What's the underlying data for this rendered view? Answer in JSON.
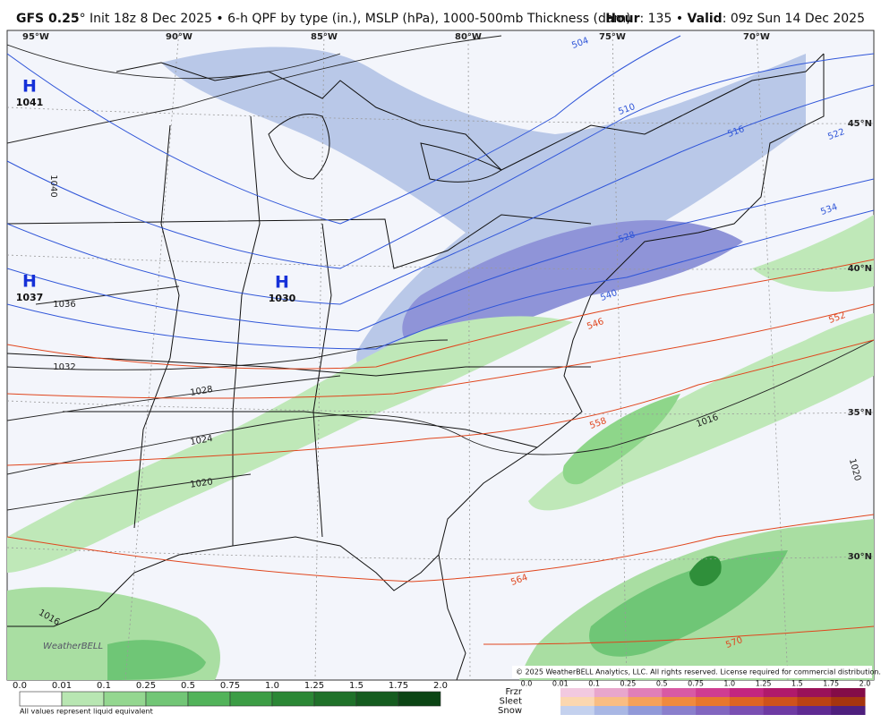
{
  "header": {
    "model": "GFS 0.25",
    "run_info": "° Init 18z 8 Dec 2025 • 6-h QPF by type (in.), MSLP (hPa), 1000-500mb Thickness (dam)",
    "hour_label": "Hour",
    "hour": ": 135 •",
    "valid_label": "Valid",
    "valid": ": 09z Sun 14 Dec 2025"
  },
  "map": {
    "longitudes": [
      "95°W",
      "90°W",
      "85°W",
      "80°W",
      "75°W",
      "70°W"
    ],
    "latitudes": [
      "45°N",
      "40°N",
      "35°N",
      "30°N"
    ],
    "highs": [
      {
        "letter": "H",
        "pressure": "1041"
      },
      {
        "letter": "H",
        "pressure": "1037"
      },
      {
        "letter": "H",
        "pressure": "1030"
      }
    ],
    "isobar_labels": [
      "1040",
      "1036",
      "1032",
      "1028",
      "1024",
      "1020",
      "1016",
      "1016",
      "1020"
    ],
    "thickness_labels": [
      "504",
      "510",
      "516",
      "522",
      "528",
      "534",
      "540",
      "546",
      "552",
      "558",
      "564",
      "570"
    ],
    "brand": "WeatherBELL",
    "copyright": "© 2025 WeatherBELL Analytics, LLC. All rights reserved. License required for commercial distribution."
  },
  "legend": {
    "rain_ticks": [
      "0.0",
      "0.01",
      "0.1",
      "0.25",
      "0.5",
      "0.75",
      "1.0",
      "1.25",
      "1.5",
      "1.75",
      "2.0"
    ],
    "note": "All values represent liquid equivalent",
    "types": [
      "Frzr",
      "Sleet",
      "Snow"
    ],
    "mixed_ticks": [
      "0.0",
      "0.01",
      "0.1",
      "0.25",
      "0.5",
      "0.75",
      "1.0",
      "1.25",
      "1.5",
      "1.75",
      "2.0"
    ]
  }
}
